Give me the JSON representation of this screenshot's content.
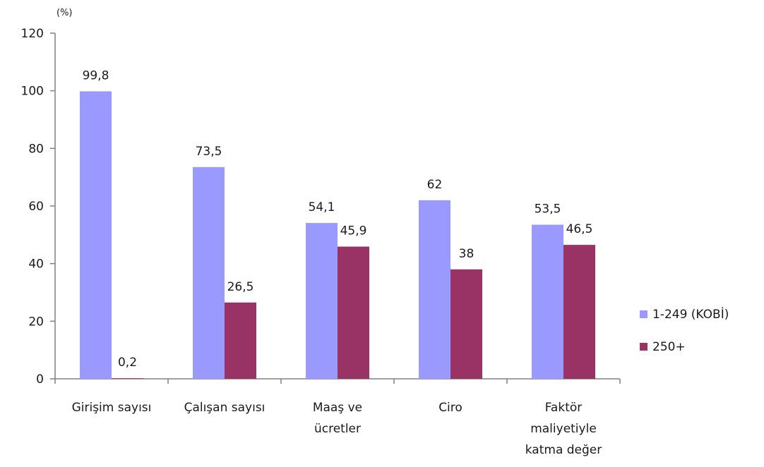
{
  "chart_data": {
    "type": "bar",
    "unit_label": "(%)",
    "categories": [
      [
        "Girişim sayısı"
      ],
      [
        "Çalışan sayısı"
      ],
      [
        "Maaş ve",
        "ücretler"
      ],
      [
        "Ciro"
      ],
      [
        "Faktör",
        "maliyetiyle",
        "katma değer"
      ]
    ],
    "series": [
      {
        "name": "1-249 (KOBİ)",
        "color": "#9999ff",
        "values": [
          99.8,
          73.5,
          54.1,
          62,
          53.5
        ],
        "labels": [
          "99,8",
          "73,5",
          "54,1",
          "62",
          "53,5"
        ]
      },
      {
        "name": "250+",
        "color": "#993366",
        "values": [
          0.2,
          26.5,
          45.9,
          38,
          46.5
        ],
        "labels": [
          "0,2",
          "26,5",
          "45,9",
          "38",
          "46,5"
        ]
      }
    ],
    "ylim": [
      0,
      120
    ],
    "yticks": [
      0,
      20,
      40,
      60,
      80,
      100,
      120
    ],
    "grid": false,
    "legend_position": "right"
  }
}
